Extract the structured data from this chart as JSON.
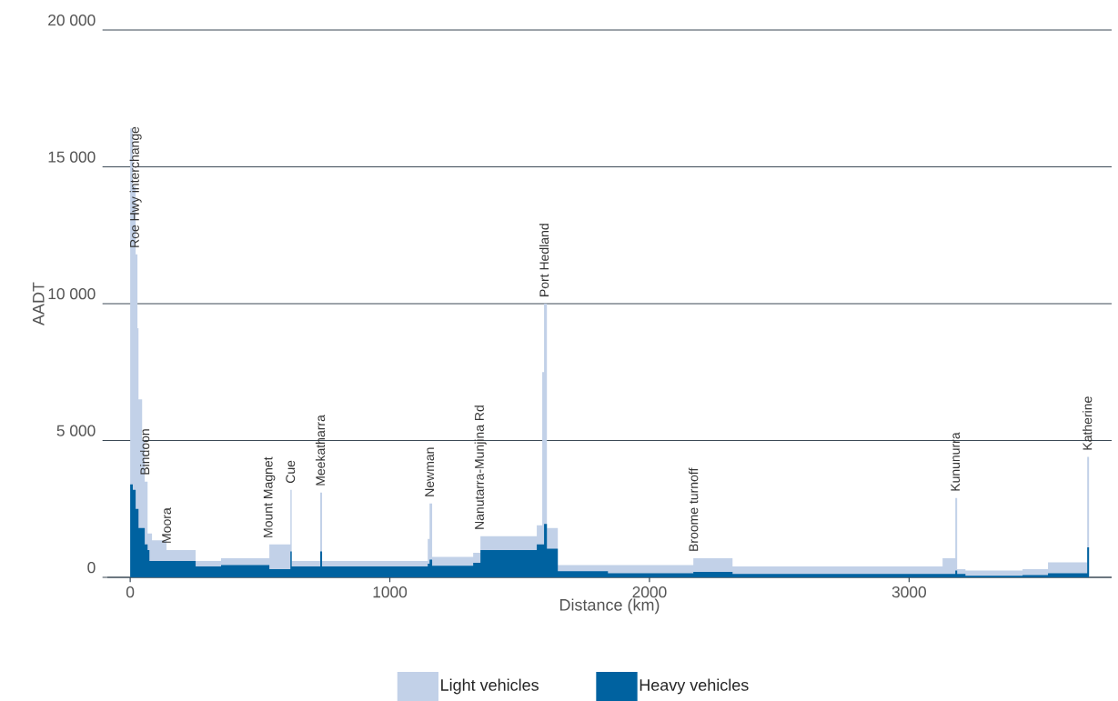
{
  "chart_data": {
    "type": "area",
    "stacked": true,
    "xlabel": "Distance (km)",
    "ylabel": "AADT",
    "x": [
      0,
      10,
      21,
      28,
      32,
      46,
      56,
      67,
      74,
      84,
      140,
      252,
      350,
      536,
      617,
      622,
      732,
      739,
      1146,
      1153,
      1163,
      1321,
      1349,
      1566,
      1587,
      1594,
      1605,
      1647,
      1840,
      2169,
      2320,
      3129,
      3178,
      3185,
      3217,
      3437,
      3535,
      3686,
      3693
    ],
    "series": [
      {
        "name": "Heavy vehicles",
        "color": "#0062a0",
        "values": [
          3400,
          3200,
          2500,
          2500,
          1800,
          1800,
          1200,
          1000,
          600,
          600,
          600,
          400,
          450,
          300,
          950,
          400,
          950,
          400,
          500,
          650,
          420,
          530,
          1000,
          1200,
          1200,
          1950,
          1050,
          220,
          150,
          200,
          120,
          120,
          250,
          120,
          60,
          80,
          150,
          1100,
          1100
        ]
      },
      {
        "name": "Light vehicles",
        "color": "#c2d1e8",
        "values": [
          13000,
          11100,
          9300,
          6600,
          4700,
          3200,
          2300,
          600,
          1000,
          750,
          400,
          200,
          250,
          900,
          2250,
          200,
          2150,
          200,
          900,
          2050,
          330,
          370,
          500,
          700,
          6300,
          8050,
          750,
          230,
          300,
          500,
          280,
          580,
          2650,
          180,
          190,
          220,
          400,
          3300,
          3300
        ]
      }
    ],
    "xlim": [
      -88,
      3780
    ],
    "ylim": [
      0,
      20000
    ],
    "xticks": [
      0,
      1000,
      2000,
      3000
    ],
    "yticks": [
      0,
      {
        "value": 5000,
        "label": "5 000"
      },
      {
        "value": 10000,
        "label": "10 000"
      },
      {
        "value": 15000,
        "label": "15 000"
      },
      {
        "value": 20000,
        "label": "20 000"
      }
    ],
    "grid": "y",
    "legend": "bottom",
    "annotations": [
      {
        "text": "Roe Hwy interchange",
        "x": 21,
        "y": 11800
      },
      {
        "text": "Bindoon",
        "x": 56,
        "y": 3500
      },
      {
        "text": "Moora",
        "x": 140,
        "y": 1000
      },
      {
        "text": "Mount Magnet",
        "x": 536,
        "y": 1200
      },
      {
        "text": "Cue",
        "x": 617,
        "y": 3200
      },
      {
        "text": "Meekatharra",
        "x": 732,
        "y": 3100
      },
      {
        "text": "Newman",
        "x": 1153,
        "y": 2700
      },
      {
        "text": "Nanutarra-Munjina Rd",
        "x": 1349,
        "y": 1500
      },
      {
        "text": "Port Hedland",
        "x": 1594,
        "y": 10000
      },
      {
        "text": "Broome turnoff",
        "x": 2169,
        "y": 700
      },
      {
        "text": "Kununurra",
        "x": 3178,
        "y": 2900
      },
      {
        "text": "Katherine",
        "x": 3686,
        "y": 4400
      }
    ]
  }
}
